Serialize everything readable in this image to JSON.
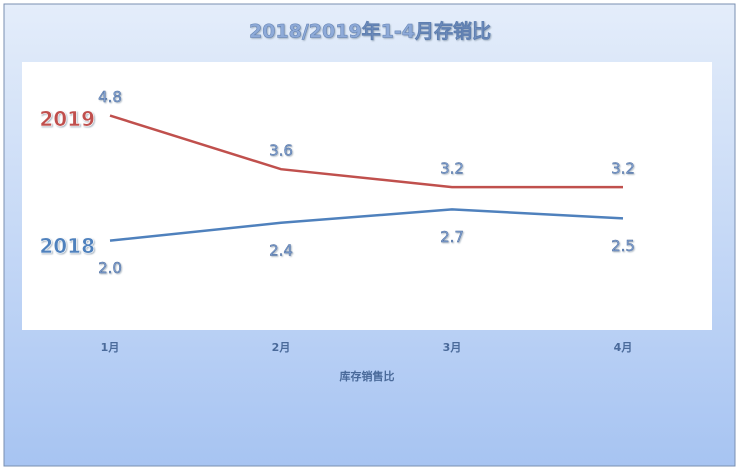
{
  "chart_data": {
    "type": "line",
    "title": "2018/2019年1-4月存销比",
    "x_label": "库存销售比",
    "categories": [
      "1月",
      "2月",
      "3月",
      "4月"
    ],
    "series": [
      {
        "name": "2019",
        "color": "#c0504d",
        "values": [
          4.8,
          3.6,
          3.2,
          3.2
        ]
      },
      {
        "name": "2018",
        "color": "#4f81bd",
        "values": [
          2.0,
          2.4,
          2.7,
          2.5
        ],
        "value_labels": [
          "2.0",
          "2.4",
          "2.7",
          "2.5"
        ]
      }
    ],
    "ylim": [
      0,
      6
    ]
  }
}
